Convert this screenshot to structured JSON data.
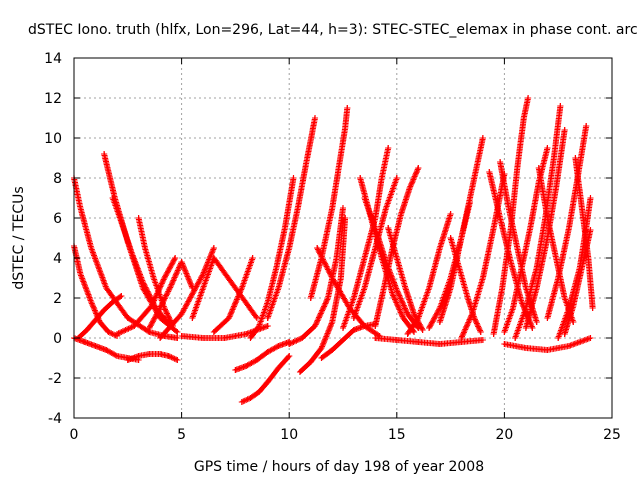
{
  "chart_data": {
    "type": "scatter",
    "title": "dSTEC Iono. truth (hlfx, Lon=296, Lat=44, h=3): STEC-STEC_elemax in phase cont. arc",
    "xlabel": "GPS time / hours of day 198 of year 2008",
    "ylabel": "dSTEC  / TECUs",
    "xlim": [
      0,
      25
    ],
    "ylim": [
      -4,
      14
    ],
    "xticks": [
      0,
      5,
      10,
      15,
      20,
      25
    ],
    "yticks": [
      -4,
      -2,
      0,
      2,
      4,
      6,
      8,
      10,
      12,
      14
    ],
    "grid": true,
    "legend": "none",
    "marker": "plus",
    "color": "#ff0000",
    "series": [
      {
        "x": [
          0.0,
          0.3,
          0.8,
          1.5,
          2.5,
          3.5,
          4.2,
          4.8
        ],
        "y": [
          8.0,
          6.5,
          4.5,
          2.5,
          1.0,
          0.3,
          0.1,
          0.0
        ]
      },
      {
        "x": [
          0.0,
          0.3,
          0.8,
          1.2,
          1.6,
          2.0
        ],
        "y": [
          4.6,
          3.2,
          1.8,
          0.8,
          0.3,
          0.1
        ]
      },
      {
        "x": [
          0.0,
          0.5,
          1.0,
          1.5,
          2.0,
          2.5,
          3.0
        ],
        "y": [
          0.0,
          -0.2,
          -0.4,
          -0.6,
          -0.9,
          -1.0,
          -1.1
        ]
      },
      {
        "x": [
          0.2,
          0.6,
          1.0,
          1.4,
          1.8,
          2.2
        ],
        "y": [
          0.0,
          0.4,
          0.9,
          1.4,
          1.8,
          2.1
        ]
      },
      {
        "x": [
          1.4,
          1.9,
          2.5,
          3.2,
          4.0,
          4.8
        ],
        "y": [
          9.2,
          7.0,
          4.8,
          2.5,
          1.0,
          0.3
        ]
      },
      {
        "x": [
          1.8,
          2.2,
          2.7,
          3.2,
          3.8,
          4.5
        ],
        "y": [
          7.0,
          5.8,
          4.2,
          2.8,
          1.5,
          0.6
        ]
      },
      {
        "x": [
          2.5,
          3.0,
          3.5,
          4.0,
          4.4,
          4.8
        ],
        "y": [
          -1.1,
          -0.9,
          -0.8,
          -0.8,
          -0.9,
          -1.1
        ]
      },
      {
        "x": [
          3.0,
          3.3,
          3.7,
          4.2,
          4.6
        ],
        "y": [
          6.0,
          4.5,
          3.0,
          1.5,
          0.6
        ]
      },
      {
        "x": [
          2.0,
          2.8,
          3.6,
          4.2,
          4.7
        ],
        "y": [
          0.2,
          0.6,
          1.6,
          3.0,
          4.0
        ]
      },
      {
        "x": [
          3.5,
          4.0,
          4.5,
          5.0,
          5.5
        ],
        "y": [
          0.5,
          1.5,
          2.6,
          3.8,
          2.5
        ]
      },
      {
        "x": [
          4.0,
          5.0,
          6.0,
          6.5
        ],
        "y": [
          0.0,
          1.2,
          3.2,
          4.5
        ]
      },
      {
        "x": [
          5.5,
          6.0,
          6.5,
          7.5,
          8.5
        ],
        "y": [
          1.0,
          2.5,
          4.0,
          2.5,
          1.0
        ]
      },
      {
        "x": [
          5.0,
          6.0,
          7.0,
          8.0,
          9.0
        ],
        "y": [
          0.1,
          0.0,
          0.0,
          0.2,
          0.6
        ]
      },
      {
        "x": [
          6.5,
          7.2,
          7.8,
          8.3
        ],
        "y": [
          0.3,
          1.0,
          2.5,
          4.0
        ]
      },
      {
        "x": [
          7.5,
          8.0,
          8.5,
          9.0,
          9.5,
          10.0
        ],
        "y": [
          -1.6,
          -1.4,
          -1.1,
          -0.7,
          -0.4,
          -0.2
        ]
      },
      {
        "x": [
          7.8,
          8.2,
          8.6,
          9.0,
          9.5,
          10.0
        ],
        "y": [
          -3.2,
          -3.0,
          -2.7,
          -2.2,
          -1.5,
          -0.9
        ]
      },
      {
        "x": [
          8.2,
          8.6,
          9.0,
          9.4,
          9.8,
          10.2
        ],
        "y": [
          0.0,
          0.6,
          1.8,
          3.5,
          5.5,
          8.0
        ]
      },
      {
        "x": [
          9.0,
          9.5,
          10.0,
          10.4,
          10.8,
          11.2
        ],
        "y": [
          1.0,
          2.5,
          4.5,
          6.5,
          8.8,
          11.0
        ]
      },
      {
        "x": [
          10.0,
          10.6,
          11.2,
          11.8,
          12.2,
          12.5
        ],
        "y": [
          -0.3,
          0.0,
          0.6,
          2.0,
          4.0,
          6.5
        ]
      },
      {
        "x": [
          10.5,
          11.0,
          11.5,
          12.0,
          12.4,
          12.6
        ],
        "y": [
          -1.7,
          -1.2,
          -0.5,
          0.8,
          3.0,
          6.0
        ]
      },
      {
        "x": [
          11.0,
          11.5,
          12.0,
          12.3,
          12.6,
          12.7
        ],
        "y": [
          2.0,
          4.0,
          6.5,
          8.5,
          10.5,
          11.5
        ]
      },
      {
        "x": [
          11.5,
          12.0,
          12.5,
          13.0,
          13.5,
          14.0
        ],
        "y": [
          -1.0,
          -0.6,
          -0.1,
          0.4,
          0.6,
          0.7
        ]
      },
      {
        "x": [
          11.3,
          12.0,
          12.8,
          13.5,
          14.2
        ],
        "y": [
          4.5,
          3.0,
          1.5,
          0.6,
          0.1
        ]
      },
      {
        "x": [
          12.5,
          13.0,
          13.5,
          14.0,
          14.3,
          14.6
        ],
        "y": [
          0.5,
          2.0,
          4.0,
          6.0,
          8.0,
          9.5
        ]
      },
      {
        "x": [
          13.0,
          13.5,
          14.0,
          14.5,
          15.0
        ],
        "y": [
          1.0,
          2.5,
          4.5,
          6.5,
          8.0
        ]
      },
      {
        "x": [
          13.3,
          13.8,
          14.3,
          14.8,
          15.3,
          15.8
        ],
        "y": [
          8.0,
          6.0,
          4.0,
          2.2,
          1.0,
          0.3
        ]
      },
      {
        "x": [
          13.5,
          14.0,
          14.5,
          15.0,
          15.5,
          16.0
        ],
        "y": [
          7.0,
          5.5,
          3.8,
          2.4,
          1.2,
          0.5
        ]
      },
      {
        "x": [
          14.0,
          14.4,
          14.8,
          15.2,
          15.6,
          16.0
        ],
        "y": [
          0.6,
          2.5,
          4.5,
          6.2,
          7.5,
          8.5
        ]
      },
      {
        "x": [
          14.6,
          15.0,
          15.4,
          15.8,
          16.2
        ],
        "y": [
          5.5,
          4.0,
          2.5,
          1.2,
          0.4
        ]
      },
      {
        "x": [
          14.0,
          15.0,
          16.0,
          17.0,
          18.0,
          19.0
        ],
        "y": [
          0.0,
          -0.1,
          -0.2,
          -0.3,
          -0.2,
          -0.1
        ]
      },
      {
        "x": [
          15.5,
          16.0,
          16.5,
          17.0,
          17.5
        ],
        "y": [
          0.2,
          1.0,
          2.5,
          4.5,
          6.2
        ]
      },
      {
        "x": [
          16.5,
          17.0,
          17.5,
          18.0,
          18.4
        ],
        "y": [
          0.5,
          1.5,
          3.0,
          5.0,
          6.8
        ]
      },
      {
        "x": [
          17.0,
          17.5,
          18.0,
          18.5,
          19.0
        ],
        "y": [
          0.8,
          2.5,
          5.0,
          7.5,
          10.0
        ]
      },
      {
        "x": [
          17.5,
          17.9,
          18.3,
          18.6,
          18.9
        ],
        "y": [
          5.0,
          3.5,
          2.0,
          1.0,
          0.3
        ]
      },
      {
        "x": [
          18.0,
          18.5,
          19.0,
          19.5,
          20.0
        ],
        "y": [
          0.0,
          1.2,
          3.0,
          5.5,
          8.2
        ]
      },
      {
        "x": [
          19.3,
          19.8,
          20.3,
          20.8,
          21.3
        ],
        "y": [
          8.3,
          6.0,
          3.8,
          1.8,
          0.5
        ]
      },
      {
        "x": [
          19.8,
          20.2,
          20.6,
          21.0,
          21.5
        ],
        "y": [
          8.8,
          6.5,
          4.5,
          2.5,
          0.8
        ]
      },
      {
        "x": [
          19.5,
          19.9,
          20.3,
          20.6,
          20.9,
          21.1
        ],
        "y": [
          0.2,
          2.5,
          5.5,
          8.5,
          11.0,
          12.0
        ]
      },
      {
        "x": [
          20.0,
          20.4,
          20.8,
          21.2,
          21.6,
          22.0
        ],
        "y": [
          0.3,
          1.5,
          3.5,
          5.5,
          7.8,
          9.5
        ]
      },
      {
        "x": [
          20.5,
          21.0,
          21.5,
          21.9,
          22.3,
          22.6
        ],
        "y": [
          0.0,
          1.5,
          3.5,
          6.0,
          9.0,
          11.6
        ]
      },
      {
        "x": [
          20.0,
          21.0,
          22.0,
          23.0,
          24.0
        ],
        "y": [
          -0.3,
          -0.5,
          -0.6,
          -0.4,
          0.0
        ]
      },
      {
        "x": [
          21.0,
          21.5,
          22.0,
          22.4,
          22.8
        ],
        "y": [
          0.5,
          2.5,
          5.0,
          7.5,
          10.4
        ]
      },
      {
        "x": [
          21.6,
          22.0,
          22.4,
          22.8,
          23.2
        ],
        "y": [
          8.5,
          6.0,
          4.0,
          2.0,
          0.8
        ]
      },
      {
        "x": [
          22.0,
          22.5,
          23.0,
          23.4,
          23.8
        ],
        "y": [
          1.0,
          3.0,
          5.5,
          8.0,
          10.6
        ]
      },
      {
        "x": [
          22.5,
          23.0,
          23.5,
          23.8,
          24.0
        ],
        "y": [
          0.0,
          1.5,
          3.5,
          5.5,
          7.0
        ]
      },
      {
        "x": [
          23.3,
          23.6,
          23.9,
          24.1
        ],
        "y": [
          9.0,
          6.5,
          4.0,
          1.5
        ]
      },
      {
        "x": [
          22.8,
          23.2,
          23.6,
          24.0
        ],
        "y": [
          0.2,
          1.6,
          3.5,
          5.4
        ]
      }
    ]
  }
}
